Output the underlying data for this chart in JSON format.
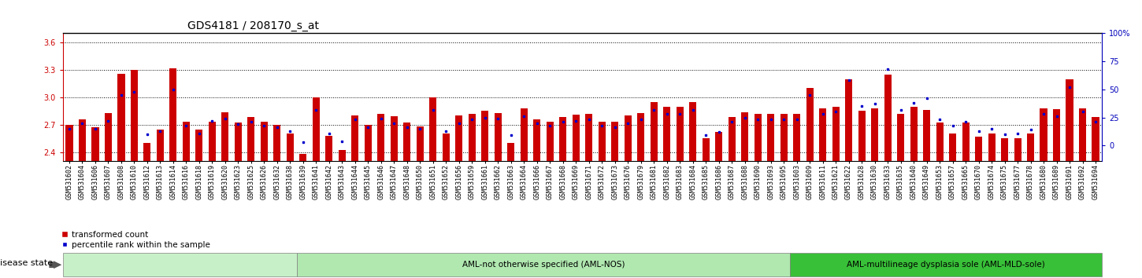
{
  "title": "GDS4181 / 208170_s_at",
  "samples": [
    "GSM531602",
    "GSM531604",
    "GSM531606",
    "GSM531607",
    "GSM531608",
    "GSM531610",
    "GSM531612",
    "GSM531613",
    "GSM531614",
    "GSM531616",
    "GSM531618",
    "GSM531619",
    "GSM531620",
    "GSM531623",
    "GSM531625",
    "GSM531626",
    "GSM531632",
    "GSM531638",
    "GSM531639",
    "GSM531641",
    "GSM531642",
    "GSM531643",
    "GSM531644",
    "GSM531645",
    "GSM531646",
    "GSM531647",
    "GSM531648",
    "GSM531650",
    "GSM531651",
    "GSM531652",
    "GSM531656",
    "GSM531659",
    "GSM531661",
    "GSM531662",
    "GSM531663",
    "GSM531664",
    "GSM531666",
    "GSM531667",
    "GSM531668",
    "GSM531669",
    "GSM531671",
    "GSM531672",
    "GSM531673",
    "GSM531676",
    "GSM531679",
    "GSM531681",
    "GSM531682",
    "GSM531683",
    "GSM531684",
    "GSM531685",
    "GSM531686",
    "GSM531687",
    "GSM531688",
    "GSM531690",
    "GSM531693",
    "GSM531695",
    "GSM531603",
    "GSM531609",
    "GSM531611",
    "GSM531621",
    "GSM531622",
    "GSM531628",
    "GSM531630",
    "GSM531633",
    "GSM531635",
    "GSM531640",
    "GSM531649",
    "GSM531653",
    "GSM531657",
    "GSM531665",
    "GSM531670",
    "GSM531674",
    "GSM531675",
    "GSM531677",
    "GSM531678",
    "GSM531680",
    "GSM531689",
    "GSM531691",
    "GSM531692",
    "GSM531694"
  ],
  "transformed_count": [
    2.7,
    2.76,
    2.67,
    2.83,
    3.26,
    3.3,
    2.5,
    2.65,
    3.32,
    2.73,
    2.65,
    2.73,
    2.84,
    2.72,
    2.78,
    2.73,
    2.7,
    2.6,
    2.38,
    3.0,
    2.58,
    2.42,
    2.8,
    2.7,
    2.82,
    2.79,
    2.72,
    2.68,
    3.0,
    2.6,
    2.8,
    2.82,
    2.85,
    2.83,
    2.5,
    2.88,
    2.76,
    2.73,
    2.78,
    2.81,
    2.82,
    2.73,
    2.73,
    2.8,
    2.83,
    2.95,
    2.9,
    2.9,
    2.95,
    2.55,
    2.62,
    2.78,
    2.84,
    2.82,
    2.82,
    2.82,
    2.82,
    3.1,
    2.88,
    2.9,
    3.2,
    2.85,
    2.88,
    3.25,
    2.82,
    2.9,
    2.86,
    2.72,
    2.6,
    2.72,
    2.57,
    2.6,
    2.55,
    2.55,
    2.6,
    2.88,
    2.87,
    3.2,
    2.88,
    2.78
  ],
  "percentile_rank": [
    15,
    20,
    15,
    22,
    45,
    48,
    10,
    13,
    50,
    18,
    11,
    22,
    24,
    19,
    21,
    18,
    16,
    13,
    3,
    32,
    11,
    4,
    23,
    16,
    24,
    20,
    16,
    15,
    32,
    13,
    20,
    23,
    25,
    24,
    9,
    26,
    20,
    18,
    21,
    22,
    23,
    18,
    16,
    20,
    23,
    32,
    28,
    28,
    32,
    9,
    12,
    21,
    25,
    23,
    23,
    23,
    23,
    45,
    28,
    30,
    58,
    35,
    37,
    68,
    32,
    38,
    42,
    23,
    18,
    21,
    13,
    15,
    10,
    11,
    14,
    28,
    26,
    52,
    30,
    21
  ],
  "group_starts": [
    0,
    18,
    56
  ],
  "group_ends": [
    18,
    56,
    80
  ],
  "group_colors": [
    "#c8f0c8",
    "#b0e8b0",
    "#38c038"
  ],
  "group_labels": [
    "",
    "AML-not otherwise specified (AML-NOS)",
    "AML-multilineage dysplasia sole (AML-MLD-sole)"
  ],
  "ylim_left": [
    2.3,
    3.7
  ],
  "ylim_right": [
    -14,
    100
  ],
  "yticks_left": [
    2.4,
    2.7,
    3.0,
    3.3,
    3.6
  ],
  "yticks_right": [
    0,
    25,
    50,
    75,
    100
  ],
  "bar_color": "#cc0000",
  "dot_color": "#0000cc",
  "title_fontsize": 10,
  "tick_fontsize": 6,
  "legend_fontsize": 7.5
}
